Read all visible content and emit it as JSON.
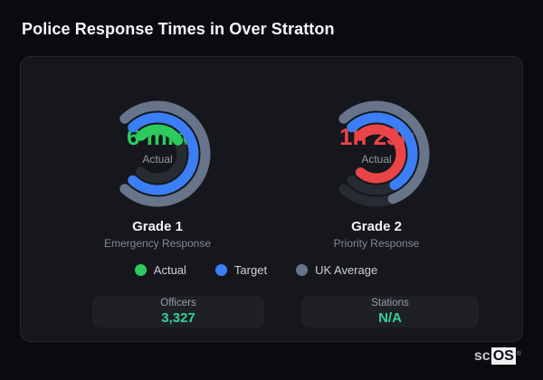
{
  "header": {
    "title": "Police Response Times in Over Stratton"
  },
  "chart_data": [
    {
      "type": "gauge",
      "title": "Grade 1",
      "subtitle": "Emergency Response",
      "center_value": "6 min",
      "center_label": "Actual",
      "value_color": "#2bcb5e",
      "rings": [
        {
          "series": "UK Average",
          "color": "#67748a",
          "start_deg": 317,
          "end_deg": 223,
          "track_end_deg": 223
        },
        {
          "series": "Target",
          "color": "#3b7ef5",
          "start_deg": 317,
          "end_deg": 223,
          "track_end_deg": 223
        },
        {
          "series": "Actual",
          "color": "#2bcb5e",
          "start_deg": 317,
          "end_deg": 57,
          "track_end_deg": 223
        }
      ]
    },
    {
      "type": "gauge",
      "title": "Grade 2",
      "subtitle": "Priority Response",
      "center_value": "1h 23m",
      "center_label": "Actual",
      "value_color": "#ea4448",
      "rings": [
        {
          "series": "UK Average",
          "color": "#67748a",
          "start_deg": 317,
          "end_deg": 160,
          "track_end_deg": 223
        },
        {
          "series": "Target",
          "color": "#3b7ef5",
          "start_deg": 317,
          "end_deg": 150,
          "track_end_deg": 223
        },
        {
          "series": "Actual",
          "color": "#ea4448",
          "start_deg": 317,
          "end_deg": 220,
          "track_end_deg": 223
        }
      ]
    }
  ],
  "legend": {
    "items": [
      {
        "label": "Actual",
        "color": "#2bcb5e"
      },
      {
        "label": "Target",
        "color": "#3b7ef5"
      },
      {
        "label": "UK Average",
        "color": "#67748a"
      }
    ]
  },
  "stats": [
    {
      "label": "Officers",
      "value": "3,327"
    },
    {
      "label": "Stations",
      "value": "N/A"
    }
  ],
  "branding": {
    "prefix": "sc",
    "suffix": "OS",
    "registered": "®"
  },
  "colors": {
    "accent_value": "#34d399",
    "track": "#272b32"
  }
}
